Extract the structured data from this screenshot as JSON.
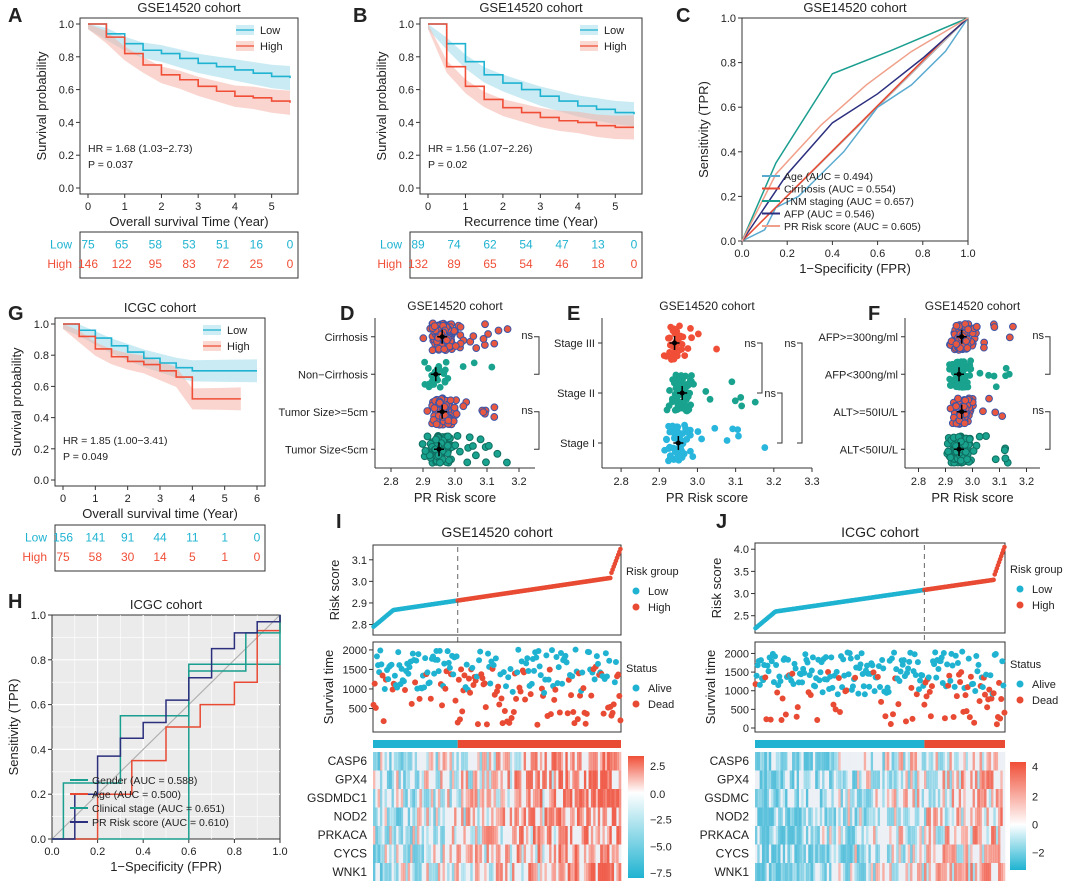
{
  "figure": "multi-panel survival / ROC / risk-score figure",
  "colors": {
    "low": "#1fb3d1",
    "high": "#f04e37",
    "lowBand": "#9fdbea",
    "highBand": "#f6b3a8",
    "teal": "#1a9e8f",
    "navy": "#2b2f7e",
    "pink": "#f0a08a",
    "gray": "#b0b0b0",
    "red": "#e84a33"
  },
  "chart_data": [
    {
      "panel": "A",
      "type": "line",
      "title": "GSE14520 cohort",
      "xlabel": "Overall survival Time (Year)",
      "ylabel": "Survival probability",
      "xlim": [
        0,
        5.5
      ],
      "ylim": [
        0,
        1.0
      ],
      "xticks": [
        "0",
        "1",
        "2",
        "3",
        "4",
        "5"
      ],
      "yticks": [
        "0.0",
        "0.2",
        "0.4",
        "0.6",
        "0.8",
        "1.0"
      ],
      "legend": [
        "Low",
        "High"
      ],
      "series": [
        {
          "name": "Low",
          "x": [
            0,
            0.5,
            1,
            1.5,
            2,
            2.5,
            3,
            3.5,
            4,
            4.5,
            5,
            5.5
          ],
          "y": [
            1,
            0.94,
            0.88,
            0.84,
            0.82,
            0.79,
            0.76,
            0.74,
            0.72,
            0.7,
            0.68,
            0.67
          ]
        },
        {
          "name": "High",
          "x": [
            0,
            0.5,
            1,
            1.5,
            2,
            2.5,
            3,
            3.5,
            4,
            4.5,
            5,
            5.5
          ],
          "y": [
            1,
            0.92,
            0.82,
            0.75,
            0.69,
            0.66,
            0.62,
            0.59,
            0.56,
            0.55,
            0.53,
            0.52
          ]
        }
      ],
      "annotations": [
        "HR = 1.68 (1.03−2.73)",
        "P = 0.037"
      ],
      "risk_table": {
        "rows": [
          {
            "label": "Low",
            "values": [
              "75",
              "65",
              "58",
              "53",
              "51",
              "16",
              "0"
            ]
          },
          {
            "label": "High",
            "values": [
              "146",
              "122",
              "95",
              "83",
              "72",
              "25",
              "0"
            ]
          }
        ]
      }
    },
    {
      "panel": "B",
      "type": "line",
      "title": "GSE14520 cohort",
      "xlabel": "Recurrence time (Year)",
      "ylabel": "Survival probability",
      "xlim": [
        0,
        5.5
      ],
      "ylim": [
        0,
        1.0
      ],
      "xticks": [
        "0",
        "1",
        "2",
        "3",
        "4",
        "5"
      ],
      "yticks": [
        "0.0",
        "0.2",
        "0.4",
        "0.6",
        "0.8",
        "1.0"
      ],
      "legend": [
        "Low",
        "High"
      ],
      "series": [
        {
          "name": "Low",
          "x": [
            0,
            0.5,
            1,
            1.5,
            2,
            2.5,
            3,
            3.5,
            4,
            4.5,
            5,
            5.5
          ],
          "y": [
            1,
            0.88,
            0.77,
            0.69,
            0.64,
            0.6,
            0.56,
            0.53,
            0.5,
            0.48,
            0.46,
            0.45
          ]
        },
        {
          "name": "High",
          "x": [
            0,
            0.5,
            1,
            1.5,
            2,
            2.5,
            3,
            3.5,
            4,
            4.5,
            5,
            5.5
          ],
          "y": [
            1,
            0.74,
            0.62,
            0.54,
            0.49,
            0.46,
            0.43,
            0.41,
            0.4,
            0.38,
            0.37,
            0.37
          ]
        }
      ],
      "annotations": [
        "HR = 1.56 (1.07−2.26)",
        "P = 0.02"
      ],
      "risk_table": {
        "rows": [
          {
            "label": "Low",
            "values": [
              "89",
              "74",
              "62",
              "54",
              "47",
              "13",
              "0"
            ]
          },
          {
            "label": "High",
            "values": [
              "132",
              "89",
              "65",
              "54",
              "46",
              "18",
              "0"
            ]
          }
        ]
      }
    },
    {
      "panel": "C",
      "type": "line",
      "title": "GSE14520 cohort",
      "xlabel": "1−Specificity (FPR)",
      "ylabel": "Sensitivity (TPR)",
      "xlim": [
        0,
        1
      ],
      "ylim": [
        0,
        1
      ],
      "xticks": [
        "0.0",
        "0.2",
        "0.4",
        "0.6",
        "0.8",
        "1.0"
      ],
      "yticks": [
        "0.0",
        "0.2",
        "0.4",
        "0.6",
        "0.8",
        "1.0"
      ],
      "series": [
        {
          "name": "Age (AUC = 0.494)",
          "color": "#5aaad0",
          "x": [
            0,
            0.1,
            0.15,
            0.25,
            0.35,
            0.45,
            0.6,
            0.75,
            0.9,
            1
          ],
          "y": [
            0,
            0.05,
            0.15,
            0.2,
            0.3,
            0.4,
            0.6,
            0.7,
            0.85,
            1
          ]
        },
        {
          "name": "Cirrhosis (AUC = 0.554)",
          "color": "#e84a33",
          "x": [
            0,
            0.9,
            1
          ],
          "y": [
            0,
            0.91,
            1
          ]
        },
        {
          "name": "TNM staging (AUC = 0.657)",
          "color": "#1a9e8f",
          "x": [
            0,
            0.15,
            0.4,
            0.65,
            1
          ],
          "y": [
            0,
            0.35,
            0.75,
            0.85,
            1
          ]
        },
        {
          "name": "AFP (AUC = 0.546)",
          "color": "#2b2f7e",
          "x": [
            0,
            0.2,
            0.4,
            0.6,
            0.8,
            1
          ],
          "y": [
            0,
            0.3,
            0.53,
            0.66,
            0.82,
            1
          ]
        },
        {
          "name": "PR Risk score (AUC = 0.605)",
          "color": "#f0a08a",
          "x": [
            0,
            0.15,
            0.35,
            0.55,
            0.75,
            1
          ],
          "y": [
            0,
            0.3,
            0.52,
            0.7,
            0.85,
            1
          ]
        }
      ]
    },
    {
      "panel": "G",
      "type": "line",
      "title": "ICGC cohort",
      "xlabel": "Overall survival time (Year)",
      "ylabel": "Survival probability",
      "xlim": [
        0,
        6
      ],
      "ylim": [
        0,
        1.0
      ],
      "xticks": [
        "0",
        "1",
        "2",
        "3",
        "4",
        "5",
        "6"
      ],
      "yticks": [
        "0.0",
        "0.2",
        "0.4",
        "0.6",
        "0.8",
        "1.0"
      ],
      "legend": [
        "Low",
        "High"
      ],
      "series": [
        {
          "name": "Low",
          "x": [
            0,
            0.5,
            1,
            1.5,
            2,
            2.5,
            3,
            3.5,
            4,
            5,
            6
          ],
          "y": [
            1,
            0.96,
            0.91,
            0.86,
            0.82,
            0.78,
            0.75,
            0.72,
            0.7,
            0.7,
            0.7
          ]
        },
        {
          "name": "High",
          "x": [
            0,
            0.5,
            1,
            1.5,
            2,
            2.5,
            3,
            3.5,
            4,
            5,
            5.5
          ],
          "y": [
            1,
            0.92,
            0.84,
            0.79,
            0.76,
            0.74,
            0.7,
            0.66,
            0.52,
            0.52,
            0.52
          ]
        }
      ],
      "annotations": [
        "HR = 1.85 (1.00−3.41)",
        "P = 0.049"
      ],
      "risk_table": {
        "rows": [
          {
            "label": "Low",
            "values": [
              "156",
              "141",
              "91",
              "44",
              "11",
              "1",
              "0"
            ]
          },
          {
            "label": "High",
            "values": [
              "75",
              "58",
              "30",
              "14",
              "5",
              "1",
              "0"
            ]
          }
        ]
      }
    },
    {
      "panel": "D",
      "type": "scatter",
      "title": "GSE14520 cohort",
      "xlabel": "PR Risk score",
      "xticks": [
        "2.8",
        "2.9",
        "3.0",
        "3.1",
        "3.2"
      ],
      "xlim": [
        2.75,
        3.25
      ],
      "groups": [
        "Cirrhosis",
        "Non−Cirrhosis",
        "Tumor Size>=5cm",
        "Tumor Size<5cm"
      ],
      "means": [
        2.96,
        2.94,
        2.96,
        2.95
      ],
      "ns": [
        "ns",
        "ns"
      ]
    },
    {
      "panel": "E",
      "type": "scatter",
      "title": "GSE14520 cohort",
      "xlabel": "PR Risk score",
      "xticks": [
        "2.8",
        "2.9",
        "3.0",
        "3.1",
        "3.2",
        "3.3"
      ],
      "xlim": [
        2.75,
        3.3
      ],
      "groups": [
        "Stage III",
        "Stage II",
        "Stage I"
      ],
      "means": [
        2.94,
        2.96,
        2.95
      ],
      "ns": [
        "ns",
        "ns",
        "ns"
      ]
    },
    {
      "panel": "F",
      "type": "scatter",
      "title": "GSE14520 cohort",
      "xlabel": "PR Risk score",
      "xticks": [
        "2.8",
        "2.9",
        "3.0",
        "3.1",
        "3.2"
      ],
      "xlim": [
        2.75,
        3.25
      ],
      "groups": [
        "AFP>=300ng/ml",
        "AFP<300ng/ml",
        "ALT>=50IU/L",
        "ALT<50IU/L"
      ],
      "means": [
        2.96,
        2.95,
        2.96,
        2.95
      ],
      "ns": [
        "ns",
        "ns"
      ]
    },
    {
      "panel": "H",
      "type": "line",
      "title": "ICGC cohort",
      "xlabel": "1−Specificity (FPR)",
      "ylabel": "Sensitivity (TPR)",
      "xlim": [
        0,
        1
      ],
      "ylim": [
        0,
        1
      ],
      "xticks": [
        "0.0",
        "0.2",
        "0.4",
        "0.6",
        "0.8",
        "1.0"
      ],
      "yticks": [
        "0.0",
        "0.2",
        "0.4",
        "0.6",
        "0.8",
        "1.0"
      ],
      "series": [
        {
          "name": "Gender (AUC = 0.588)",
          "color": "#1a9e8f",
          "x": [
            0,
            0.6,
            1
          ],
          "y": [
            0,
            0.78,
            1
          ]
        },
        {
          "name": "Age (AUC = 0.500)",
          "color": "#e84a33",
          "x": [
            0,
            0.2,
            0.35,
            0.5,
            0.65,
            0.8,
            0.9,
            1
          ],
          "y": [
            0,
            0.2,
            0.35,
            0.5,
            0.6,
            0.7,
            0.93,
            1
          ]
        },
        {
          "name": "Clinical stage (AUC = 0.651)",
          "color": "#1a9e8f",
          "x": [
            0,
            0.05,
            0.3,
            0.6,
            0.85,
            1
          ],
          "y": [
            0,
            0.25,
            0.55,
            0.75,
            0.92,
            1
          ]
        },
        {
          "name": "PR Risk score (AUC = 0.610)",
          "color": "#2b2f7e",
          "x": [
            0,
            0.1,
            0.2,
            0.3,
            0.4,
            0.5,
            0.6,
            0.7,
            0.8,
            0.9,
            1
          ],
          "y": [
            0,
            0.2,
            0.37,
            0.45,
            0.52,
            0.62,
            0.72,
            0.85,
            0.92,
            0.97,
            1
          ]
        }
      ]
    },
    {
      "panel": "I",
      "type": "heatmap",
      "title": "GSE14520 cohort",
      "risk_ylabel": "Risk score",
      "risk_yticks": [
        "2.8",
        "2.9",
        "3.0",
        "3.1"
      ],
      "risk_ylim": [
        2.77,
        3.15
      ],
      "time_ylabel": "Survival time",
      "time_yticks": [
        "500",
        "1000",
        "1500",
        "2000"
      ],
      "time_ylim": [
        0,
        2100
      ],
      "legend_risk": {
        "title": "Risk group",
        "items": [
          "Low",
          "High"
        ]
      },
      "legend_status": {
        "title": "Status",
        "items": [
          "Alive",
          "Dead"
        ]
      },
      "genes": [
        "CASP6",
        "GPX4",
        "GSDMDC1",
        "NOD2",
        "PRKACA",
        "CYCS",
        "WNK1"
      ],
      "colorbar_ticks": [
        "2.5",
        "0.0",
        "−2.5",
        "−5.0",
        "−7.5"
      ],
      "n_samples": 221,
      "n_low": 75
    },
    {
      "panel": "J",
      "type": "heatmap",
      "title": "ICGC cohort",
      "risk_ylabel": "Risk score",
      "risk_yticks": [
        "2.5",
        "3.0",
        "3.5",
        "4.0"
      ],
      "risk_ylim": [
        2.2,
        4.05
      ],
      "time_ylabel": "Survival time",
      "time_yticks": [
        "0",
        "500",
        "1000",
        "1500",
        "2000"
      ],
      "time_ylim": [
        0,
        2200
      ],
      "legend_risk": {
        "title": "Risk group",
        "items": [
          "Low",
          "High"
        ]
      },
      "legend_status": {
        "title": "Status",
        "items": [
          "Alive",
          "Dead"
        ]
      },
      "genes": [
        "CASP6",
        "GPX4",
        "GSDMC",
        "NOD2",
        "PRKACA",
        "CYCS",
        "WNK1"
      ],
      "colorbar_ticks": [
        "4",
        "2",
        "0",
        "−2"
      ],
      "n_samples": 231,
      "n_low": 156
    }
  ],
  "panel_letters": [
    "A",
    "B",
    "C",
    "G",
    "D",
    "E",
    "F",
    "H",
    "I",
    "J"
  ]
}
